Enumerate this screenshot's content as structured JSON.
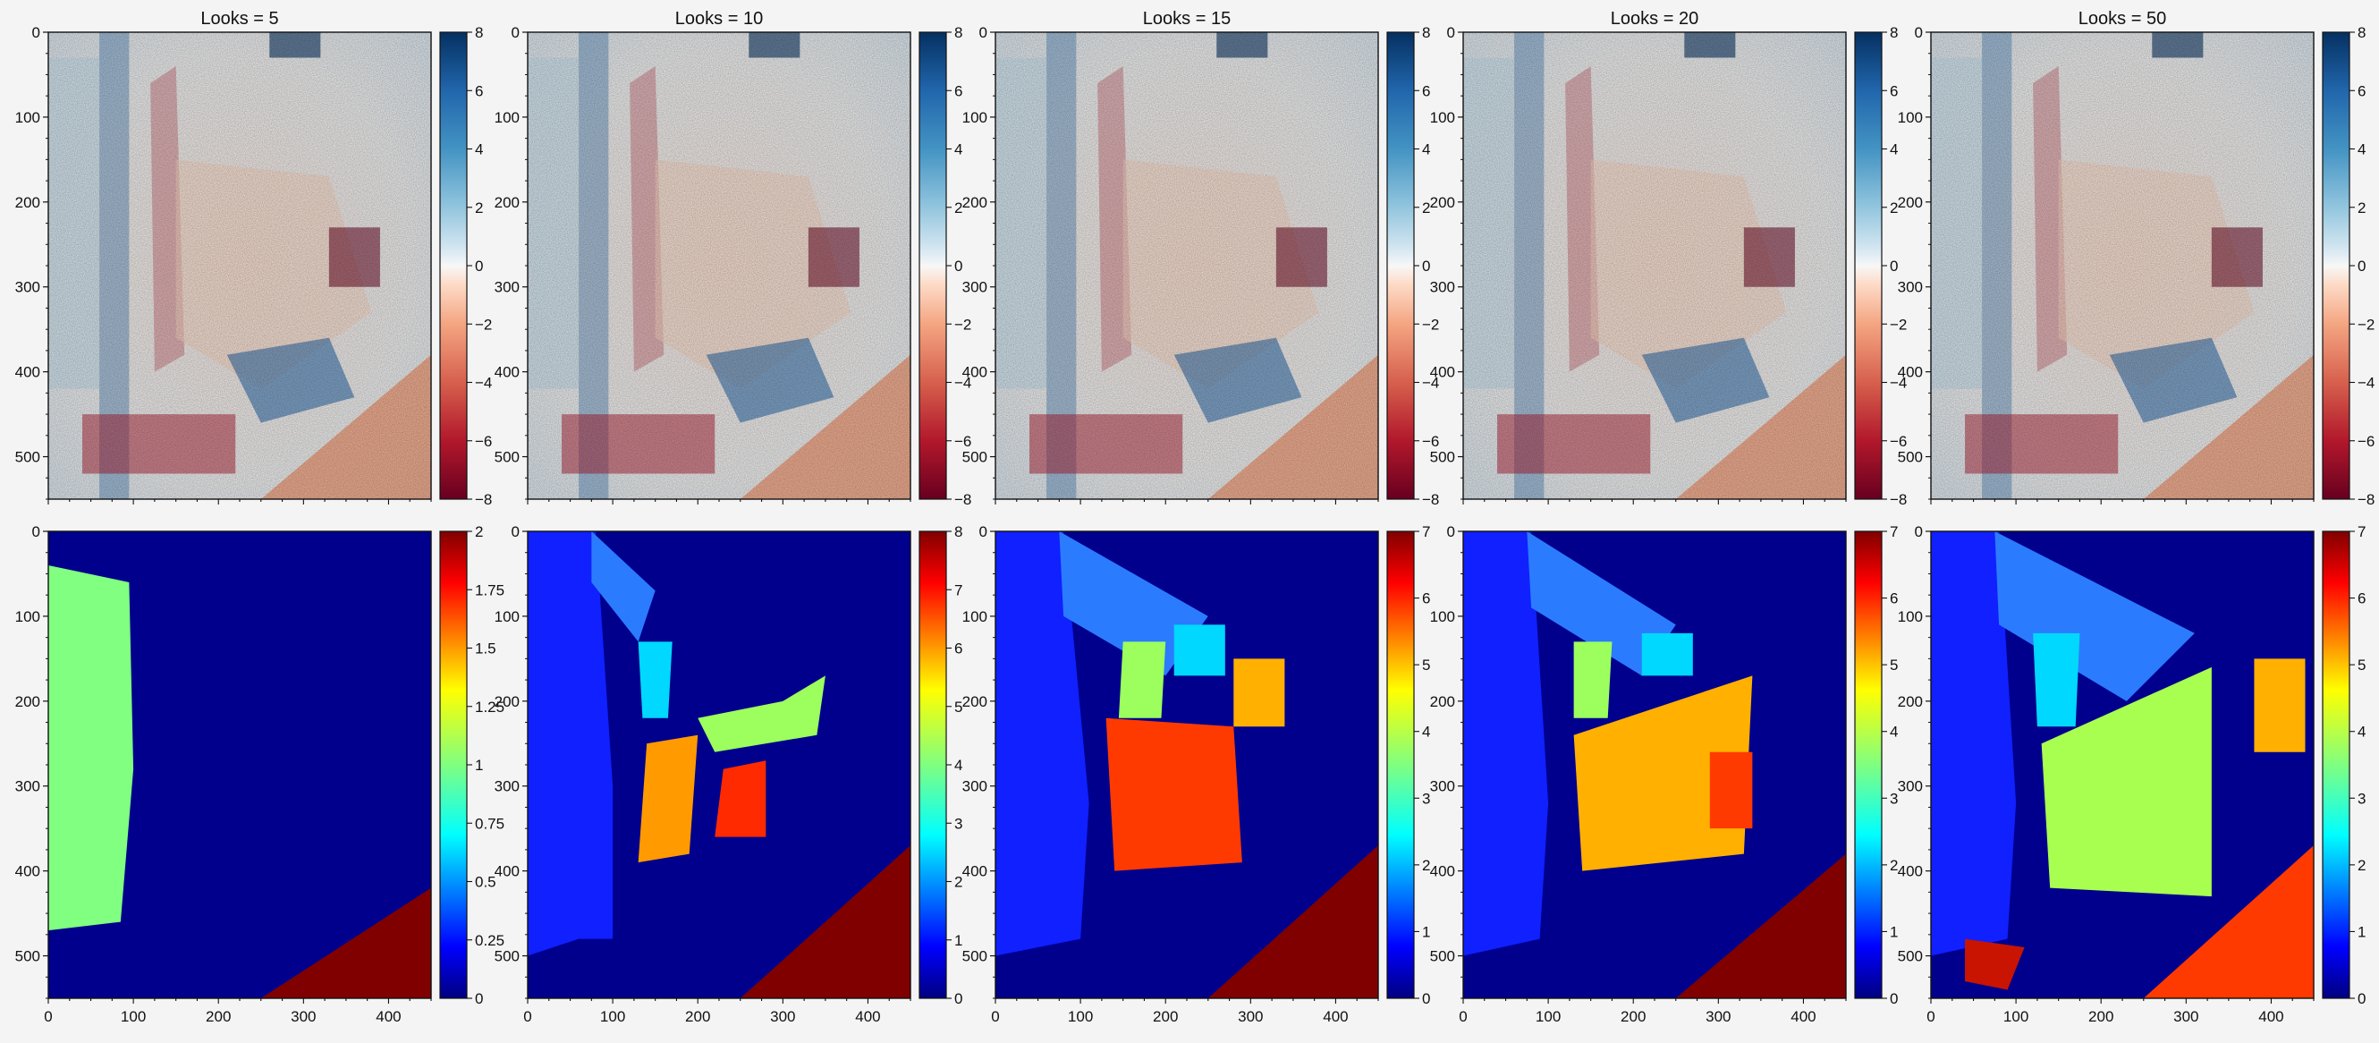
{
  "figure": {
    "layout": "2 rows x 5 columns of image panels, each with its own colorbar",
    "row_colormaps": [
      "RdBu",
      "jet"
    ]
  },
  "chart_data": [
    {
      "type": "heatmap",
      "title": "Looks = 5",
      "colormap": "RdBu",
      "xlim": [
        0,
        450
      ],
      "ylim": [
        550,
        0
      ],
      "xticks": [],
      "yticks": [
        0,
        100,
        200,
        300,
        400,
        500
      ],
      "clim": [
        -8,
        8
      ],
      "colorbar_ticks": [
        "8",
        "6",
        "4",
        "2",
        "0",
        "−2",
        "−4",
        "−6",
        "−8"
      ]
    },
    {
      "type": "heatmap",
      "title": "Looks = 10",
      "colormap": "RdBu",
      "xlim": [
        0,
        450
      ],
      "ylim": [
        550,
        0
      ],
      "xticks": [],
      "yticks": [
        0,
        100,
        200,
        300,
        400,
        500
      ],
      "clim": [
        -8,
        8
      ],
      "colorbar_ticks": [
        "8",
        "6",
        "4",
        "2",
        "0",
        "−2",
        "−4",
        "−6",
        "−8"
      ]
    },
    {
      "type": "heatmap",
      "title": "Looks = 15",
      "colormap": "RdBu",
      "xlim": [
        0,
        450
      ],
      "ylim": [
        550,
        0
      ],
      "xticks": [],
      "yticks": [
        0,
        100,
        200,
        300,
        400,
        500
      ],
      "clim": [
        -8,
        8
      ],
      "colorbar_ticks": [
        "8",
        "6",
        "4",
        "2",
        "0",
        "−2",
        "−4",
        "−6",
        "−8"
      ]
    },
    {
      "type": "heatmap",
      "title": "Looks = 20",
      "colormap": "RdBu",
      "xlim": [
        0,
        450
      ],
      "ylim": [
        550,
        0
      ],
      "xticks": [],
      "yticks": [
        0,
        100,
        200,
        300,
        400,
        500
      ],
      "clim": [
        -8,
        8
      ],
      "colorbar_ticks": [
        "8",
        "6",
        "4",
        "2",
        "0",
        "−2",
        "−4",
        "−6",
        "−8"
      ]
    },
    {
      "type": "heatmap",
      "title": "Looks = 50",
      "colormap": "RdBu",
      "xlim": [
        0,
        450
      ],
      "ylim": [
        550,
        0
      ],
      "xticks": [],
      "yticks": [
        0,
        100,
        200,
        300,
        400,
        500
      ],
      "clim": [
        -8,
        8
      ],
      "colorbar_ticks": [
        "8",
        "6",
        "4",
        "2",
        "0",
        "−2",
        "−4",
        "−6",
        "−8"
      ]
    },
    {
      "type": "heatmap",
      "title": "",
      "colormap": "jet",
      "xlim": [
        0,
        450
      ],
      "ylim": [
        550,
        0
      ],
      "xticks": [
        0,
        100,
        200,
        300,
        400
      ],
      "yticks": [
        0,
        100,
        200,
        300,
        400,
        500
      ],
      "clim": [
        0,
        2
      ],
      "colorbar_ticks": [
        "2",
        "1.75",
        "1.5",
        "1.25",
        "1",
        "0.75",
        "0.5",
        "0.25",
        "0"
      ]
    },
    {
      "type": "heatmap",
      "title": "",
      "colormap": "jet",
      "xlim": [
        0,
        450
      ],
      "ylim": [
        550,
        0
      ],
      "xticks": [
        0,
        100,
        200,
        300,
        400
      ],
      "yticks": [
        0,
        100,
        200,
        300,
        400,
        500
      ],
      "clim": [
        0,
        8
      ],
      "colorbar_ticks": [
        "8",
        "7",
        "6",
        "5",
        "4",
        "3",
        "2",
        "1",
        "0"
      ]
    },
    {
      "type": "heatmap",
      "title": "",
      "colormap": "jet",
      "xlim": [
        0,
        450
      ],
      "ylim": [
        550,
        0
      ],
      "xticks": [
        0,
        100,
        200,
        300,
        400
      ],
      "yticks": [
        0,
        100,
        200,
        300,
        400,
        500
      ],
      "clim": [
        0,
        7
      ],
      "colorbar_ticks": [
        "7",
        "6",
        "5",
        "4",
        "3",
        "2",
        "1",
        "0"
      ]
    },
    {
      "type": "heatmap",
      "title": "",
      "colormap": "jet",
      "xlim": [
        0,
        450
      ],
      "ylim": [
        550,
        0
      ],
      "xticks": [
        0,
        100,
        200,
        300,
        400
      ],
      "yticks": [
        0,
        100,
        200,
        300,
        400,
        500
      ],
      "clim": [
        0,
        7
      ],
      "colorbar_ticks": [
        "7",
        "6",
        "5",
        "4",
        "3",
        "2",
        "1",
        "0"
      ]
    },
    {
      "type": "heatmap",
      "title": "",
      "colormap": "jet",
      "xlim": [
        0,
        450
      ],
      "ylim": [
        550,
        0
      ],
      "xticks": [
        0,
        100,
        200,
        300,
        400
      ],
      "yticks": [
        0,
        100,
        200,
        300,
        400,
        500
      ],
      "clim": [
        0,
        7
      ],
      "colorbar_ticks": [
        "7",
        "6",
        "5",
        "4",
        "3",
        "2",
        "1",
        "0"
      ]
    }
  ]
}
